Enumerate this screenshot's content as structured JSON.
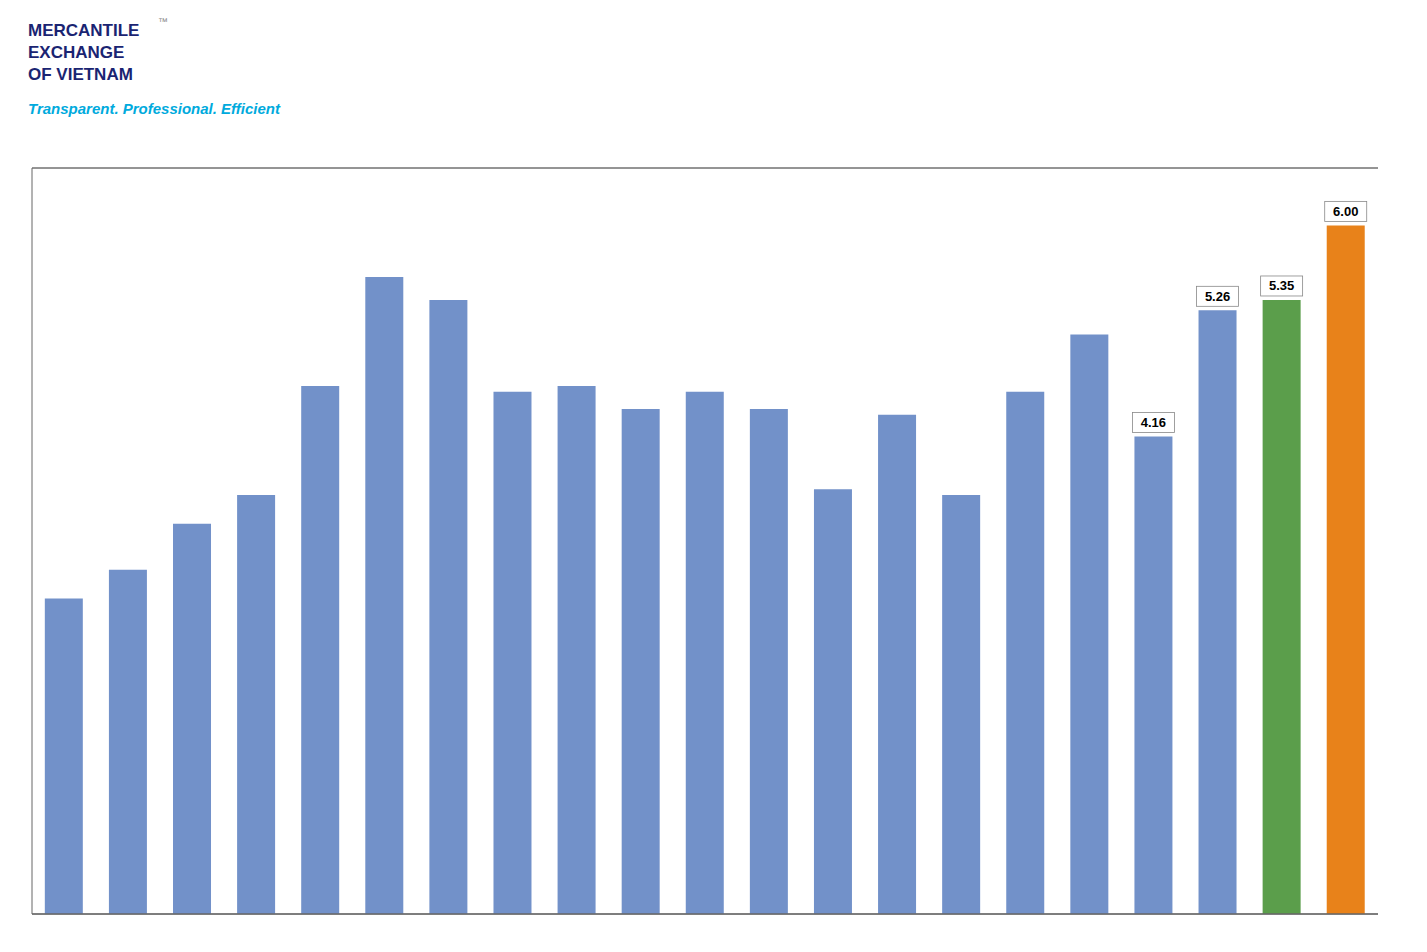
{
  "chart_data": {
    "type": "bar",
    "categories": [
      null,
      null,
      null,
      null,
      null,
      null,
      null,
      null,
      null,
      null,
      null,
      null,
      null,
      null,
      null,
      null,
      null,
      null,
      null,
      null,
      null
    ],
    "values": [
      2.75,
      3.0,
      3.4,
      3.65,
      4.6,
      5.55,
      5.35,
      4.55,
      4.6,
      4.4,
      4.55,
      4.4,
      3.7,
      4.35,
      3.65,
      4.55,
      5.05,
      4.16,
      5.26,
      5.35,
      6.0
    ],
    "value_labels": [
      null,
      null,
      null,
      null,
      null,
      null,
      null,
      null,
      null,
      null,
      null,
      null,
      null,
      null,
      null,
      null,
      null,
      "4.16",
      "5.26",
      "5.35",
      "6.00"
    ],
    "colors": [
      "#7291c9",
      "#7291c9",
      "#7291c9",
      "#7291c9",
      "#7291c9",
      "#7291c9",
      "#7291c9",
      "#7291c9",
      "#7291c9",
      "#7291c9",
      "#7291c9",
      "#7291c9",
      "#7291c9",
      "#7291c9",
      "#7291c9",
      "#7291c9",
      "#7291c9",
      "#7291c9",
      "#7291c9",
      "#5b9e4b",
      "#e8821a"
    ],
    "ylim": [
      0,
      6.5
    ],
    "yticks": [
      3,
      4,
      5,
      6
    ],
    "grid": true,
    "data_labels": true,
    "tick_labels": false,
    "annotations": [
      {
        "text": "MERCANTILE\nEXCHANGE\nOF VIETNAM",
        "color": "#1a2472"
      },
      {
        "text": "™",
        "color": "#888888"
      },
      {
        "text": "Transparent. Professional. Efficient",
        "color": "#00aadd"
      }
    ]
  }
}
